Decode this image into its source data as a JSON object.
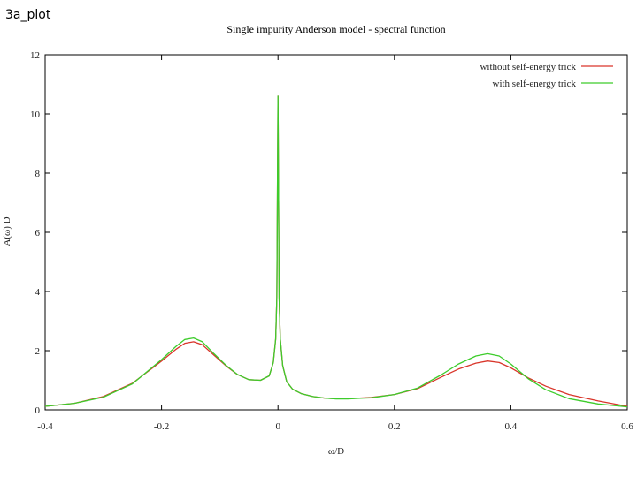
{
  "slide": {
    "title": "3a_plot"
  },
  "chart_data": {
    "type": "line",
    "title": "Single impurity Anderson model - spectral function",
    "xlabel": "ω/D",
    "ylabel": "A(ω) D",
    "xlim": [
      -0.4,
      0.6
    ],
    "ylim": [
      0,
      12
    ],
    "xticks": [
      "-0.4",
      "-0.2",
      "0",
      "0.2",
      "0.4",
      "0.6"
    ],
    "yticks": [
      "0",
      "2",
      "4",
      "6",
      "8",
      "10",
      "12"
    ],
    "grid": false,
    "legend_position": "top-right",
    "series": [
      {
        "name": "without self-energy trick",
        "color": "#d9352a",
        "x": [
          -0.4,
          -0.35,
          -0.3,
          -0.25,
          -0.2,
          -0.175,
          -0.16,
          -0.145,
          -0.13,
          -0.11,
          -0.09,
          -0.07,
          -0.05,
          -0.03,
          -0.015,
          -0.008,
          -0.004,
          -0.002,
          0,
          0.002,
          0.004,
          0.008,
          0.015,
          0.025,
          0.04,
          0.06,
          0.08,
          0.1,
          0.12,
          0.14,
          0.16,
          0.2,
          0.24,
          0.28,
          0.31,
          0.34,
          0.36,
          0.38,
          0.4,
          0.43,
          0.46,
          0.5,
          0.55,
          0.6
        ],
        "y": [
          0.12,
          0.22,
          0.45,
          0.9,
          1.65,
          2.05,
          2.25,
          2.3,
          2.2,
          1.85,
          1.5,
          1.2,
          1.02,
          1.0,
          1.15,
          1.6,
          2.4,
          3.8,
          10.6,
          3.8,
          2.4,
          1.5,
          0.95,
          0.7,
          0.55,
          0.45,
          0.4,
          0.38,
          0.38,
          0.4,
          0.42,
          0.52,
          0.72,
          1.1,
          1.38,
          1.58,
          1.65,
          1.6,
          1.42,
          1.08,
          0.8,
          0.52,
          0.3,
          0.12
        ]
      },
      {
        "name": "with self-energy trick",
        "color": "#3dcc2b",
        "x": [
          -0.4,
          -0.35,
          -0.3,
          -0.25,
          -0.2,
          -0.175,
          -0.16,
          -0.145,
          -0.13,
          -0.11,
          -0.09,
          -0.07,
          -0.05,
          -0.03,
          -0.015,
          -0.008,
          -0.004,
          -0.002,
          0,
          0.002,
          0.004,
          0.008,
          0.015,
          0.025,
          0.04,
          0.06,
          0.08,
          0.1,
          0.12,
          0.14,
          0.16,
          0.2,
          0.24,
          0.28,
          0.31,
          0.34,
          0.36,
          0.38,
          0.4,
          0.43,
          0.46,
          0.5,
          0.55,
          0.6
        ],
        "y": [
          0.12,
          0.22,
          0.43,
          0.88,
          1.7,
          2.15,
          2.38,
          2.43,
          2.3,
          1.9,
          1.52,
          1.2,
          1.02,
          1.0,
          1.15,
          1.6,
          2.4,
          3.8,
          10.6,
          3.8,
          2.4,
          1.5,
          0.95,
          0.7,
          0.55,
          0.45,
          0.4,
          0.37,
          0.37,
          0.39,
          0.41,
          0.52,
          0.74,
          1.18,
          1.55,
          1.82,
          1.9,
          1.82,
          1.55,
          1.05,
          0.68,
          0.38,
          0.2,
          0.1
        ]
      }
    ]
  }
}
